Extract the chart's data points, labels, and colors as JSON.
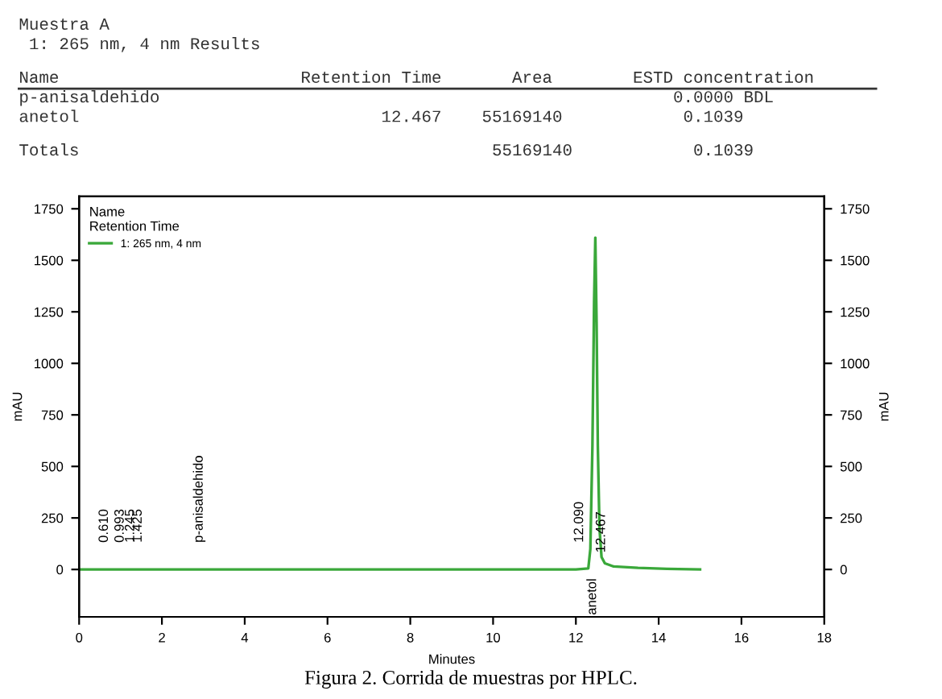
{
  "chart_data": {
    "type": "line",
    "xlabel": "Minutes",
    "ylabel": "mAU",
    "y2label": "mAU",
    "legend_title": "Name\nRetention Time",
    "series": [
      {
        "name": "1: 265 nm, 4 nm",
        "color": "#3aa83a",
        "x": [
          0,
          1,
          2,
          4,
          6,
          8,
          10,
          11,
          12,
          12.3,
          12.35,
          12.4,
          12.44,
          12.47,
          12.5,
          12.53,
          12.57,
          12.62,
          12.7,
          12.9,
          13.5,
          14.2,
          15
        ],
        "values": [
          0,
          0,
          0,
          0,
          0,
          0,
          0,
          0,
          0,
          5,
          100,
          600,
          1300,
          1610,
          1200,
          600,
          200,
          60,
          30,
          15,
          8,
          3,
          0
        ]
      }
    ],
    "xlim": [
      0,
      18
    ],
    "xticks": [
      0,
      2,
      4,
      6,
      8,
      10,
      12,
      14,
      16,
      18
    ],
    "ylim": [
      -230,
      1810
    ],
    "yticks": [
      0,
      250,
      500,
      750,
      1000,
      1250,
      1500,
      1750
    ],
    "y2lim": [
      -230,
      1810
    ],
    "y2ticks": [
      0,
      250,
      500,
      750,
      1000,
      1250,
      1500,
      1750
    ],
    "legend": "top left",
    "grid": false,
    "annotations": [
      "Muestra A",
      " 1: 265 nm, 4 nm Results",
      "Name                        Retention Time       Area        ESTD concentration",
      "p-anisaldehido                                                   0.0000 BDL",
      "anetol                              12.467    55169140            0.1039",
      "Totals                                         55169140            0.1039",
      {
        "text": "0.610",
        "x": 0.61,
        "y": 0
      },
      {
        "text": "0.993",
        "x": 0.993,
        "y": 0
      },
      {
        "text": "1.245",
        "x": 1.245,
        "y": 0
      },
      {
        "text": "1.425",
        "x": 1.425,
        "y": 0
      },
      {
        "text": "p-anisaldehido",
        "x": 2.9,
        "y": 0
      },
      {
        "text": "12.090",
        "x": 12.09,
        "y": 0
      },
      {
        "text": "12.467",
        "x": 12.62,
        "y": 60
      },
      "anetol",
      "Figura 2. Corrida de muestras por HPLC."
    ]
  }
}
